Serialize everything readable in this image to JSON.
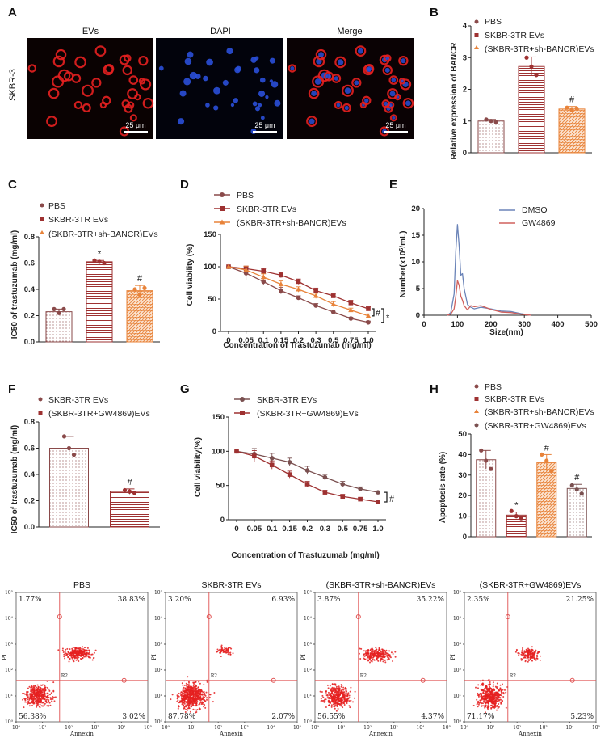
{
  "colors": {
    "pbs": "#8a4a4a",
    "sk": "#9e3131",
    "shb": "#e8833a",
    "gw": "#7a5050",
    "dmso": "#6b84b8",
    "gw4869": "#d0615d",
    "red": "#e52020",
    "blue": "#2a4fd8"
  },
  "panelA": {
    "label": "A",
    "row_label": "SKBR-3",
    "titles": [
      "EVs",
      "DAPI",
      "Merge"
    ],
    "scale_bar": "25 μm"
  },
  "panelB": {
    "label": "B",
    "legend": [
      "PBS",
      "SKBR-3TR EVs",
      "(SKBR-3TR+sh-BANCR)EVs"
    ],
    "ylabel": "Relative expression of BANCR",
    "yticks": [
      "0",
      "1",
      "2",
      "3",
      "4"
    ],
    "annotations": [
      "*",
      "#"
    ]
  },
  "panelC": {
    "label": "C",
    "legend": [
      "PBS",
      "SKBR-3TR EVs",
      "(SKBR-3TR+sh-BANCR)EVs"
    ],
    "ylabel": "IC50 of trastuzumab (mg/ml)",
    "yticks": [
      "0.0",
      "0.2",
      "0.4",
      "0.6",
      "0.8"
    ],
    "annotations": [
      "*",
      "#"
    ]
  },
  "panelD": {
    "label": "D",
    "legend": [
      "PBS",
      "SKBR-3TR EVs",
      "(SKBR-3TR+sh-BANCR)EVs"
    ],
    "ylabel": "Cell viability (%)",
    "xlabel": "Concentration of Trastuzumab (mg/ml)",
    "yticks": [
      "0",
      "50",
      "100",
      "150"
    ],
    "xticks": [
      "0",
      "0.05",
      "0.1",
      "0.15",
      "0.2",
      "0.3",
      "0.5",
      "0.75",
      "1.0"
    ],
    "annotations": [
      "#",
      "*"
    ]
  },
  "panelE": {
    "label": "E",
    "legend": [
      "DMSO",
      "GW4869"
    ],
    "ylabel_prefix": "Number(x10",
    "ylabel_sup": "6",
    "ylabel_suffix": "/mL)",
    "xlabel": "Size(nm)",
    "yticks": [
      "0",
      "5",
      "10",
      "15",
      "20"
    ],
    "xticks": [
      "0",
      "100",
      "200",
      "300",
      "400",
      "500"
    ]
  },
  "panelF": {
    "label": "F",
    "legend": [
      "SKBR-3TR EVs",
      "(SKBR-3TR+GW4869)EVs"
    ],
    "ylabel": "IC50 of trastuzumab (mg/ml)",
    "yticks": [
      "0.0",
      "0.2",
      "0.4",
      "0.6",
      "0.8"
    ],
    "annotations": [
      "#"
    ]
  },
  "panelG": {
    "label": "G",
    "legend": [
      "SKBR-3TR EVs",
      "(SKBR-3TR+GW4869)EVs"
    ],
    "ylabel": "Cell viability(%)",
    "xlabel": "Concentration of Trastuzumab (mg/ml)",
    "yticks": [
      "0",
      "50",
      "100",
      "150"
    ],
    "xticks": [
      "0",
      "0.05",
      "0.1",
      "0.15",
      "0.2",
      "0.3",
      "0.5",
      "0.75",
      "1.0"
    ],
    "annotations": [
      "#"
    ]
  },
  "panelH": {
    "label": "H",
    "legend": [
      "PBS",
      "SKBR-3TR EVs",
      "(SKBR-3TR+sh-BANCR)EVs",
      "(SKBR-3TR+GW4869)EVs"
    ],
    "ylabel": "Apoptosis rate (%)",
    "yticks": [
      "0",
      "10",
      "20",
      "30",
      "40",
      "50"
    ],
    "annotations": [
      "*",
      "#",
      "#"
    ]
  },
  "flow": {
    "plots": [
      {
        "title": "PBS",
        "q": [
          "1.77%",
          "38.83%",
          "56.38%",
          "3.02%"
        ]
      },
      {
        "title": "SKBR-3TR EVs",
        "q": [
          "3.20%",
          "6.93%",
          "87.78%",
          "2.07%"
        ]
      },
      {
        "title": "(SKBR-3TR+sh-BANCR)EVs",
        "q": [
          "3.87%",
          "35.22%",
          "56.55%",
          "4.37%"
        ]
      },
      {
        "title": "(SKBR-3TR+GW4869)EVs",
        "q": [
          "2.35%",
          "21.25%",
          "71.17%",
          "5.23%"
        ]
      }
    ],
    "ylabel": "PI",
    "xlabel": "Annexin",
    "gate_label": "R2",
    "ticks": [
      "10",
      "0",
      "1",
      "2",
      "3",
      "4",
      "5"
    ]
  },
  "chart_data": [
    {
      "panel": "B",
      "type": "bar",
      "categories": [
        "PBS",
        "SKBR-3TR EVs",
        "(SKBR-3TR+sh-BANCR)EVs"
      ],
      "values": [
        1.0,
        2.72,
        1.38
      ],
      "errors": [
        0.05,
        0.3,
        0.08
      ],
      "points": [
        [
          1.05,
          1.0,
          0.97
        ],
        [
          3.0,
          2.72,
          2.45
        ],
        [
          1.42,
          1.36,
          1.4
        ]
      ],
      "ylim": [
        0,
        4
      ]
    },
    {
      "panel": "C",
      "type": "bar",
      "categories": [
        "PBS",
        "SKBR-3TR EVs",
        "(SKBR-3TR+sh-BANCR)EVs"
      ],
      "values": [
        0.23,
        0.61,
        0.39
      ],
      "errors": [
        0.02,
        0.01,
        0.04
      ],
      "points": [
        [
          0.25,
          0.22,
          0.25
        ],
        [
          0.62,
          0.61,
          0.6
        ],
        [
          0.4,
          0.36,
          0.41
        ]
      ],
      "ylim": [
        0,
        0.8
      ]
    },
    {
      "panel": "D",
      "type": "line",
      "x": [
        "0",
        "0.05",
        "0.1",
        "0.15",
        "0.2",
        "0.3",
        "0.5",
        "0.75",
        "1.0"
      ],
      "series": [
        {
          "name": "PBS",
          "values": [
            100,
            90,
            77,
            63,
            52,
            40,
            30,
            20,
            14
          ],
          "errors": [
            0,
            10,
            5,
            5,
            3,
            3,
            3,
            2,
            2
          ]
        },
        {
          "name": "SKBR-3TR EVs",
          "values": [
            100,
            97,
            93,
            87,
            77,
            63,
            55,
            44,
            35
          ],
          "errors": [
            0,
            4,
            4,
            4,
            4,
            4,
            3,
            4,
            3
          ]
        },
        {
          "name": "(SKBR-3TR+sh-BANCR)EVs",
          "values": [
            100,
            95,
            84,
            73,
            65,
            55,
            42,
            33,
            24
          ],
          "errors": [
            0,
            6,
            5,
            5,
            4,
            4,
            4,
            3,
            3
          ]
        }
      ],
      "ylim": [
        0,
        150
      ]
    },
    {
      "panel": "E",
      "type": "line",
      "x": [
        70,
        80,
        90,
        95,
        100,
        105,
        110,
        115,
        120,
        130,
        140,
        150,
        170,
        200,
        230,
        260,
        290,
        320
      ],
      "series": [
        {
          "name": "DMSO",
          "values": [
            0,
            0.5,
            4,
            12,
            17,
            13,
            7.5,
            7.8,
            5,
            2,
            1.5,
            1.2,
            1.5,
            1.2,
            0.8,
            0.7,
            0.3,
            0
          ]
        },
        {
          "name": "GW4869",
          "values": [
            0,
            0.2,
            1.2,
            3.5,
            6.5,
            5.6,
            3.6,
            2.8,
            1.8,
            1,
            1.8,
            1.6,
            1.8,
            1.1,
            0.6,
            0.5,
            0.2,
            0
          ]
        }
      ],
      "xlim": [
        0,
        500
      ],
      "ylim": [
        0,
        20
      ]
    },
    {
      "panel": "F",
      "type": "bar",
      "categories": [
        "SKBR-3TR EVs",
        "(SKBR-3TR+GW4869)EVs"
      ],
      "values": [
        0.6,
        0.27
      ],
      "errors": [
        0.09,
        0.02
      ],
      "points": [
        [
          0.69,
          0.6,
          0.55
        ],
        [
          0.28,
          0.27,
          0.26
        ]
      ],
      "ylim": [
        0,
        0.8
      ]
    },
    {
      "panel": "G",
      "type": "line",
      "x": [
        "0",
        "0.05",
        "0.1",
        "0.15",
        "0.2",
        "0.3",
        "0.5",
        "0.75",
        "1.0"
      ],
      "series": [
        {
          "name": "SKBR-3TR EVs",
          "values": [
            100,
            96,
            90,
            84,
            72,
            62,
            52,
            45,
            40
          ],
          "errors": [
            0,
            8,
            7,
            6,
            6,
            4,
            4,
            3,
            2
          ]
        },
        {
          "name": "(SKBR-3TR+GW4869)EVs",
          "values": [
            100,
            93,
            80,
            66,
            52,
            40,
            34,
            30,
            26
          ],
          "errors": [
            0,
            8,
            6,
            5,
            4,
            3,
            3,
            2,
            2
          ]
        }
      ],
      "ylim": [
        0,
        150
      ]
    },
    {
      "panel": "H",
      "type": "bar",
      "categories": [
        "PBS",
        "SKBR-3TR EVs",
        "(SKBR-3TR+sh-BANCR)EVs",
        "(SKBR-3TR+GW4869)EVs"
      ],
      "values": [
        37.5,
        10.5,
        36,
        23.5
      ],
      "errors": [
        4.5,
        1.5,
        4,
        2
      ],
      "points": [
        [
          42,
          37,
          33
        ],
        [
          12.5,
          10,
          9
        ],
        [
          40,
          37,
          32
        ],
        [
          25,
          23,
          21
        ]
      ],
      "ylim": [
        0,
        50
      ]
    }
  ]
}
